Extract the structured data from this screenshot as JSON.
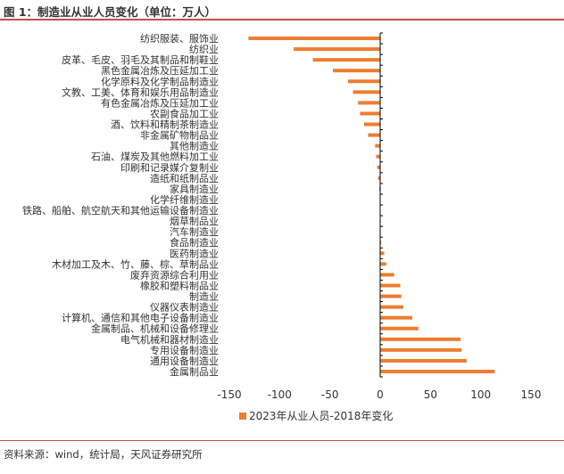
{
  "figure": {
    "title": "图 1：制造业从业人员变化（单位：万人）",
    "source": "资料来源：wind，统计局，天风证券研究所"
  },
  "colors": {
    "bar": "#ED7D31",
    "axis": "#000000",
    "rule": "#C0504D"
  },
  "chart_data": {
    "type": "bar",
    "orientation": "horizontal",
    "categories": [
      "纺织服装、服饰业",
      "纺织业",
      "皮革、毛皮、羽毛及其制品和制鞋业",
      "黑色金属冶炼及压延加工业",
      "化学原料及化学制品制造业",
      "文教、工美、体育和娱乐用品制造业",
      "有色金属冶炼及压延加工业",
      "农副食品加工业",
      "酒、饮料和精制茶制造业",
      "非金属矿物制品业",
      "其他制造业",
      "石油、煤炭及其他燃料加工业",
      "印刷和记录媒介复制业",
      "造纸和纸制品业",
      "家具制造业",
      "化学纤维制造业",
      "铁路、船舶、航空航天和其他运输设备制造业",
      "烟草制品业",
      "汽车制造业",
      "食品制造业",
      "医药制造业",
      "木材加工及木、竹、藤、棕、草制品业",
      "废弃资源综合利用业",
      "橡胶和塑料制品业",
      "制造业",
      "仪器仪表制造业",
      "计算机、通信和其他电子设备制造业",
      "金属制品、机械和设备修理业",
      "电气机械和器材制造业",
      "专用设备制造业",
      "通用设备制造业",
      "金属制品业"
    ],
    "series": [
      {
        "name": "2023年从业人员-2018年变化",
        "values": [
          -131,
          -86,
          -67,
          -47,
          -32,
          -27,
          -22,
          -20,
          -16,
          -12,
          -5,
          -4,
          -3,
          -2,
          -1,
          -0.5,
          -0.3,
          0.3,
          0.5,
          1,
          4,
          6,
          14,
          20,
          21,
          23,
          32,
          38,
          80,
          81,
          86,
          114
        ]
      }
    ],
    "xlim": [
      -150,
      150
    ],
    "xticks": [
      -150,
      -100,
      -50,
      0,
      50,
      100,
      150
    ],
    "legend": "bottom-center",
    "grid": false
  }
}
